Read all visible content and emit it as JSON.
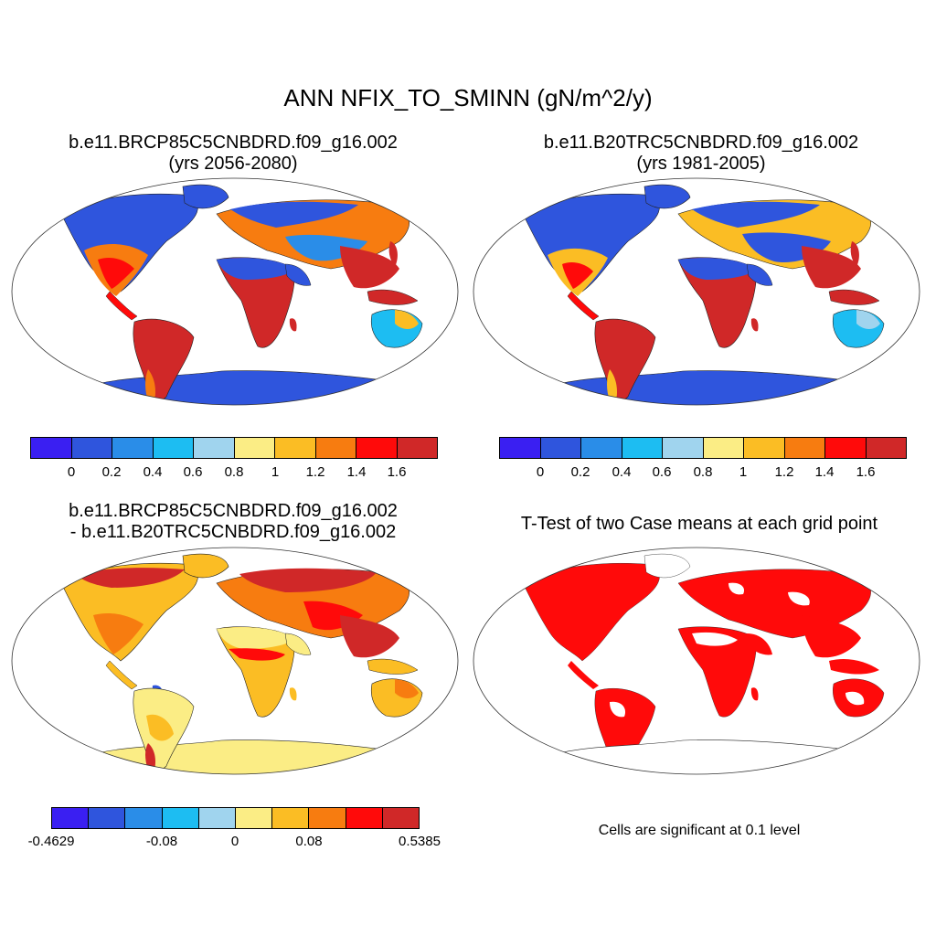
{
  "main_title": "ANN NFIX_TO_SMINN (gN/m^2/y)",
  "panels": {
    "top_left": {
      "title_line1": "b.e11.BRCP85C5CNBDRD.f09_g16.002",
      "title_line2": "(yrs 2056-2080)"
    },
    "top_right": {
      "title_line1": "b.e11.B20TRC5CNBDRD.f09_g16.002",
      "title_line2": "(yrs 1981-2005)"
    },
    "bottom_left": {
      "title_line1": "b.e11.BRCP85C5CNBDRD.f09_g16.002",
      "title_line2": "- b.e11.B20TRC5CNBDRD.f09_g16.002"
    },
    "bottom_right": {
      "title_line1": "T-Test of two Case means at each grid point",
      "note": "Cells are significant at 0.1 level"
    }
  },
  "colorbars": {
    "abs": {
      "colors": [
        "#3a1ff2",
        "#2f55dd",
        "#2a8de8",
        "#1dbdf2",
        "#a0d4ee",
        "#fbed85",
        "#fbbd24",
        "#f77c10",
        "#ff0a0a",
        "#d02828"
      ],
      "labels": [
        "0",
        "0.2",
        "0.4",
        "0.6",
        "0.8",
        "1",
        "1.2",
        "1.4",
        "1.6"
      ]
    },
    "diff": {
      "colors": [
        "#3a1ff2",
        "#2f55dd",
        "#2a8de8",
        "#1dbdf2",
        "#a0d4ee",
        "#fbed85",
        "#fbbd24",
        "#f77c10",
        "#ff0a0a",
        "#d02828"
      ],
      "labels": [
        "-0.4629",
        "-0.08",
        "0",
        "0.08",
        "0.5385"
      ]
    }
  }
}
